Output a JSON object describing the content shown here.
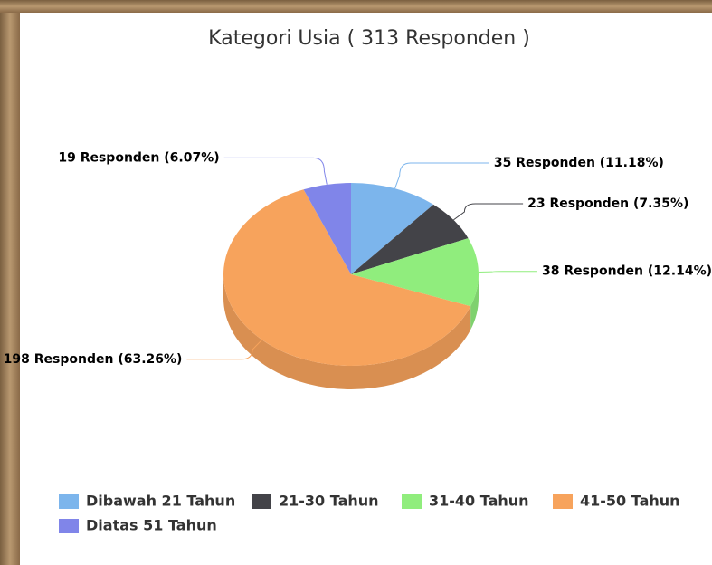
{
  "chart_data": {
    "type": "pie",
    "title": "Kategori Usia ( 313 Responden )",
    "categories": [
      "Dibawah 21 Tahun",
      "21-30 Tahun",
      "31-40 Tahun",
      "41-50 Tahun",
      "Diatas 51 Tahun"
    ],
    "values": [
      35,
      23,
      38,
      198,
      19
    ],
    "value_labels": [
      "35 Responden (11.18%)",
      "23 Responden (7.35%)",
      "38 Responden (12.14%)",
      "198 Responden (63.26%)",
      "19 Responden (6.07%)"
    ],
    "colors": [
      "#7cb5ec",
      "#434348",
      "#90ed7d",
      "#f7a35c",
      "#8085e9"
    ],
    "legend": "bottom"
  }
}
